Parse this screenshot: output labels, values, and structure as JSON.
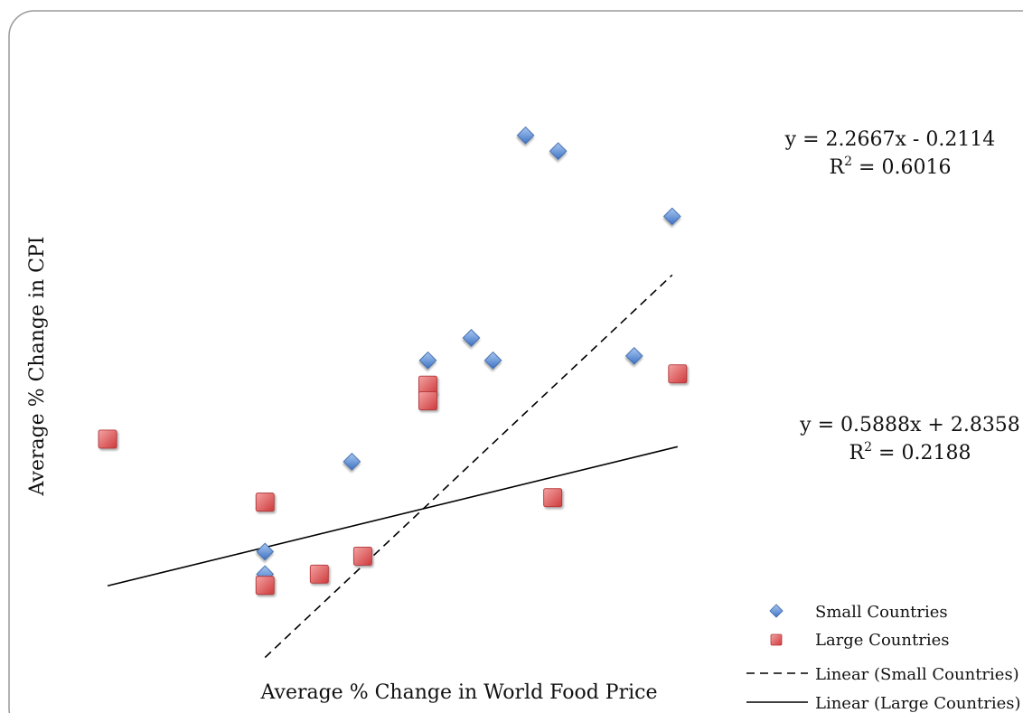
{
  "chart_data": {
    "type": "scatter",
    "title": "",
    "xlabel": "Average % Change in World Food Price",
    "ylabel": "Average % Change in CPI",
    "xlim": [
      -4.5,
      9.0
    ],
    "ylim": [
      -2.0,
      22.5
    ],
    "grid": false,
    "legend_position": "bottom-right",
    "series": [
      {
        "name": "Small Countries",
        "marker": "diamond",
        "color": "#5b8fd6",
        "points": [
          {
            "x": -1.1,
            "y": 2.0
          },
          {
            "x": -1.1,
            "y": 1.0
          },
          {
            "x": 0.5,
            "y": 6.0
          },
          {
            "x": 1.9,
            "y": 10.5
          },
          {
            "x": 2.7,
            "y": 11.5
          },
          {
            "x": 3.1,
            "y": 10.5
          },
          {
            "x": 3.7,
            "y": 20.5
          },
          {
            "x": 4.3,
            "y": 19.8
          },
          {
            "x": 5.7,
            "y": 10.7
          },
          {
            "x": 6.4,
            "y": 16.9
          }
        ]
      },
      {
        "name": "Large Countries",
        "marker": "square",
        "color": "#e0595b",
        "points": [
          {
            "x": -4.0,
            "y": 7.0
          },
          {
            "x": -1.1,
            "y": 4.2
          },
          {
            "x": -1.1,
            "y": 0.5
          },
          {
            "x": -0.1,
            "y": 1.0
          },
          {
            "x": 0.7,
            "y": 1.8
          },
          {
            "x": 1.9,
            "y": 9.4
          },
          {
            "x": 1.9,
            "y": 8.7
          },
          {
            "x": 4.2,
            "y": 4.4
          },
          {
            "x": 6.5,
            "y": 9.9
          }
        ]
      }
    ],
    "trendlines": [
      {
        "name": "Linear (Small Countries)",
        "style": "dashed",
        "slope": 2.2667,
        "intercept": -0.2114,
        "x_range": [
          -1.1,
          6.4
        ],
        "equation": "y = 2.2667x - 0.2114",
        "r2_prefix": "R",
        "r2_sup": "2",
        "r2_value": " = 0.6016"
      },
      {
        "name": "Linear (Large Countries)",
        "style": "solid",
        "slope": 0.5888,
        "intercept": 2.8358,
        "x_range": [
          -4.0,
          6.5
        ],
        "equation": "y = 0.5888x + 2.8358",
        "r2_prefix": "R",
        "r2_sup": "2",
        "r2_value": " = 0.2188"
      }
    ],
    "legend": [
      {
        "label": "Small Countries",
        "kind": "diamond"
      },
      {
        "label": "Large Countries",
        "kind": "square"
      },
      {
        "label": "Linear (Small Countries)",
        "kind": "dashed"
      },
      {
        "label": "Linear (Large Countries)",
        "kind": "solid"
      }
    ]
  }
}
